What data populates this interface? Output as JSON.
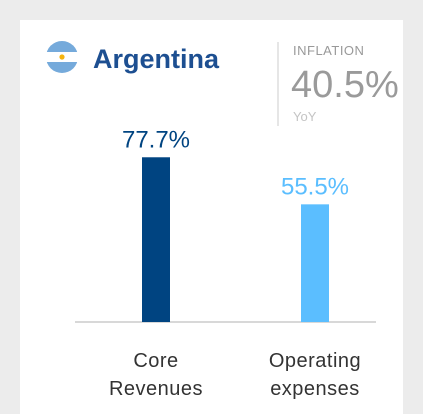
{
  "chart_data": {
    "type": "bar",
    "title": "Argentina",
    "inflation_label": "INFLATION",
    "inflation": "40.5%",
    "inflation_period": "YoY",
    "categories": [
      [
        "Core",
        "Revenues"
      ],
      [
        "Operating",
        "expenses"
      ]
    ],
    "values": [
      77.7,
      55.5
    ],
    "value_labels": [
      "77.7%",
      "55.5%"
    ],
    "colors": [
      "#004481",
      "#5bbeff"
    ]
  }
}
